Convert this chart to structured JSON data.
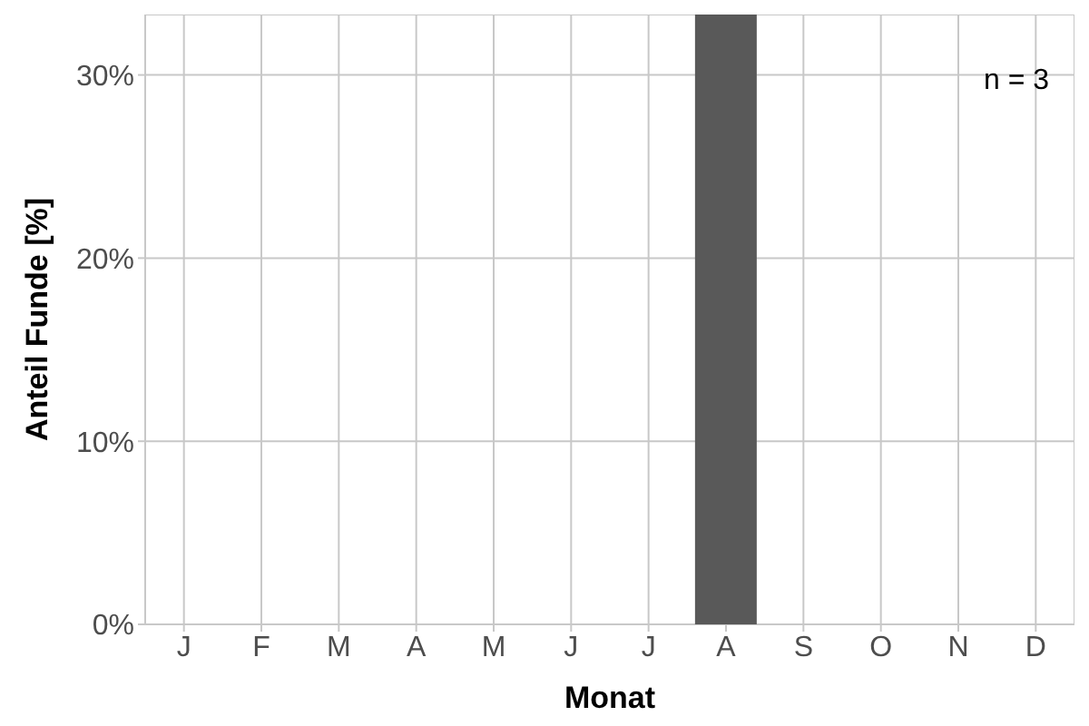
{
  "chart_data": {
    "type": "bar",
    "xlabel": "Monat",
    "ylabel": "Anteil Funde [%]",
    "categories": [
      "J",
      "F",
      "M",
      "A",
      "M",
      "J",
      "J",
      "A",
      "S",
      "O",
      "N",
      "D"
    ],
    "values": [
      0,
      0,
      0,
      0,
      0,
      0,
      0,
      33.3,
      0,
      0,
      0,
      0
    ],
    "color": "#595959",
    "ylim": [
      0,
      33.3
    ],
    "yticks": [
      {
        "value": 0,
        "label": "0%"
      },
      {
        "value": 10,
        "label": "10%"
      },
      {
        "value": 20,
        "label": "20%"
      },
      {
        "value": 30,
        "label": "30%"
      }
    ],
    "grid": true,
    "annotations": [
      "n = 3"
    ]
  }
}
